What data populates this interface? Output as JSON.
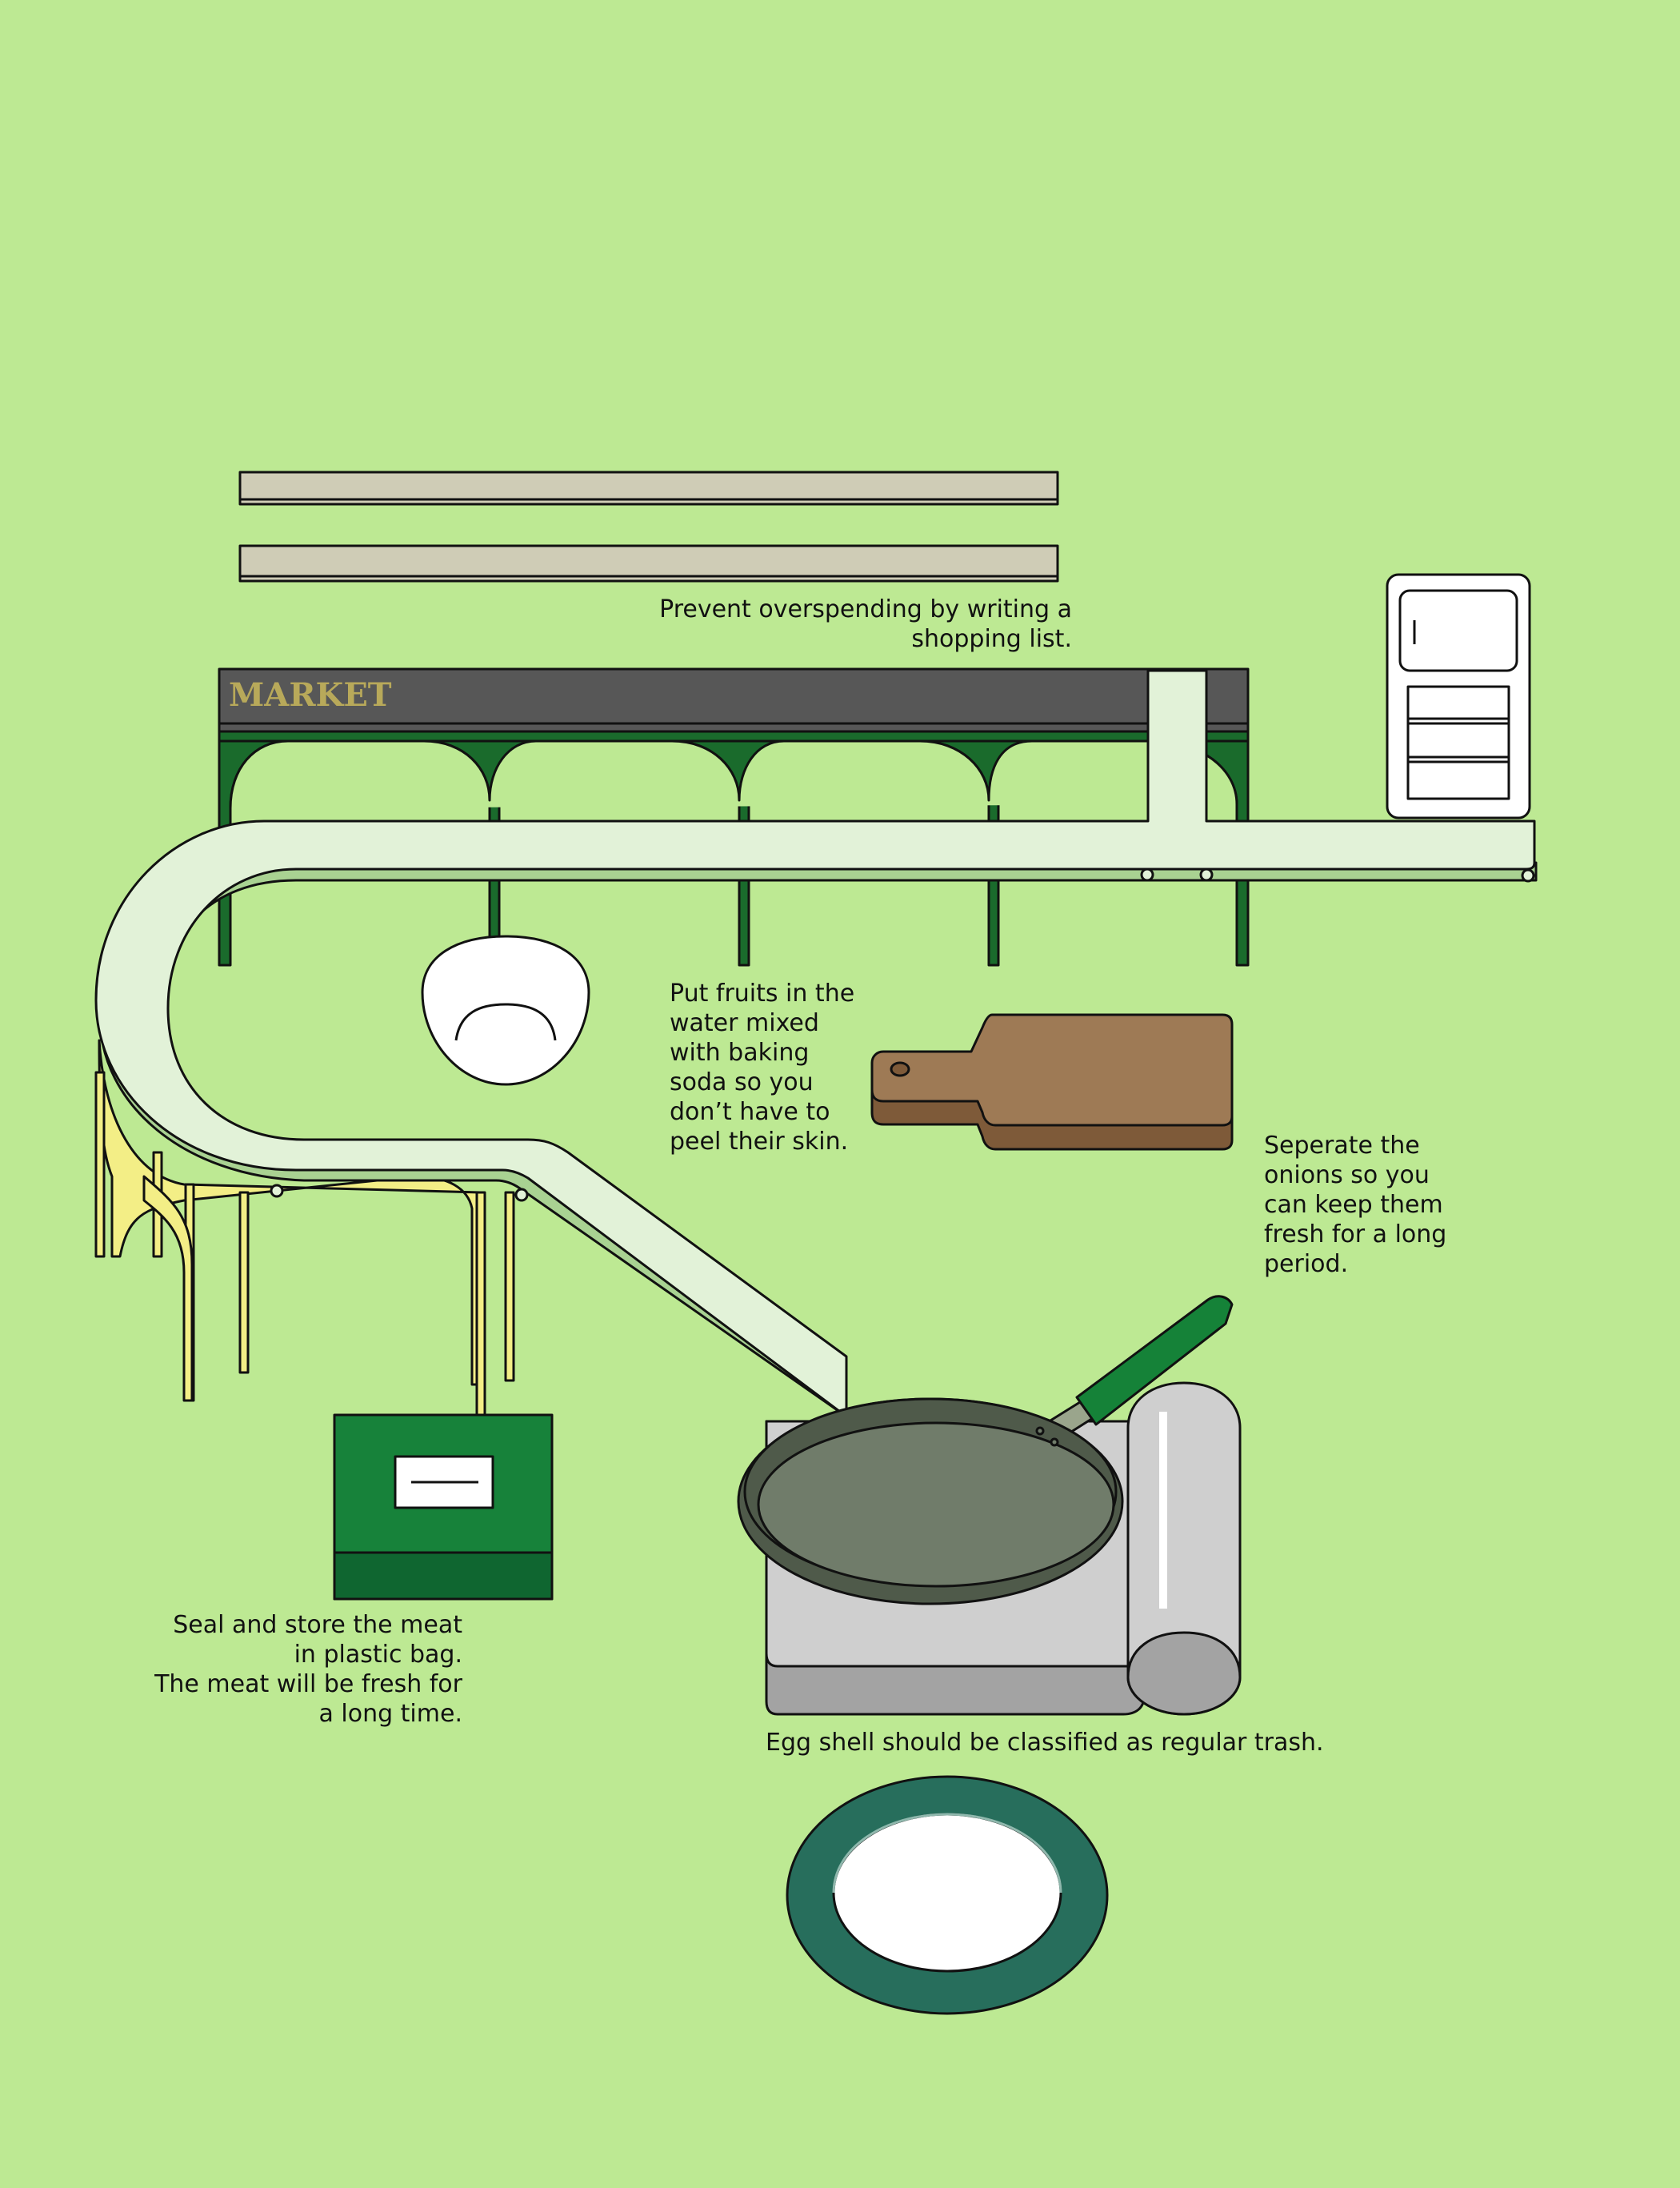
{
  "market_sign": "MARKET",
  "notes": {
    "shopping_list": "Prevent overspending by writing a\nshopping list.",
    "fruits": "Put fruits in the\nwater mixed\nwith baking\nsoda so you\ndon’t have to\npeel their skin.",
    "onions": "Seperate the\nonions so you\ncan keep them\nfresh for a long\nperiod.",
    "meat": "Seal and store the meat\nin plastic bag.\nThe meat will be fresh for\na long time.",
    "egg_shell": "Egg shell should be classified as regular trash."
  },
  "colors": {
    "background": "#bde993",
    "shelf": "#cfccb6",
    "market_banner": "#575757",
    "market_text": "#b8a95a",
    "market_arches": "#1a6b2c",
    "conveyor": "#e2f2d8",
    "conveyor_side": "#a9d292",
    "yellow_supports": "#f3ee86",
    "meat_box": "#17823a",
    "meat_box_dark": "#0f6630",
    "cutting_board": "#9e7a55",
    "cutting_board_dark": "#7e5a39",
    "pan": "#707c6a",
    "pan_rim": "#4f5a4a",
    "pan_handle": "#158238",
    "stove": "#cfcfcf",
    "stove_dark": "#a3a3a3",
    "plate_rim": "#276e5c",
    "bowl": "#ffffff",
    "fridge": "#ffffff"
  },
  "icons": [
    "shelf",
    "market-stall",
    "refrigerator",
    "conveyor-belt",
    "bowl",
    "cutting-board",
    "meat-box",
    "frying-pan",
    "stove",
    "plate"
  ]
}
